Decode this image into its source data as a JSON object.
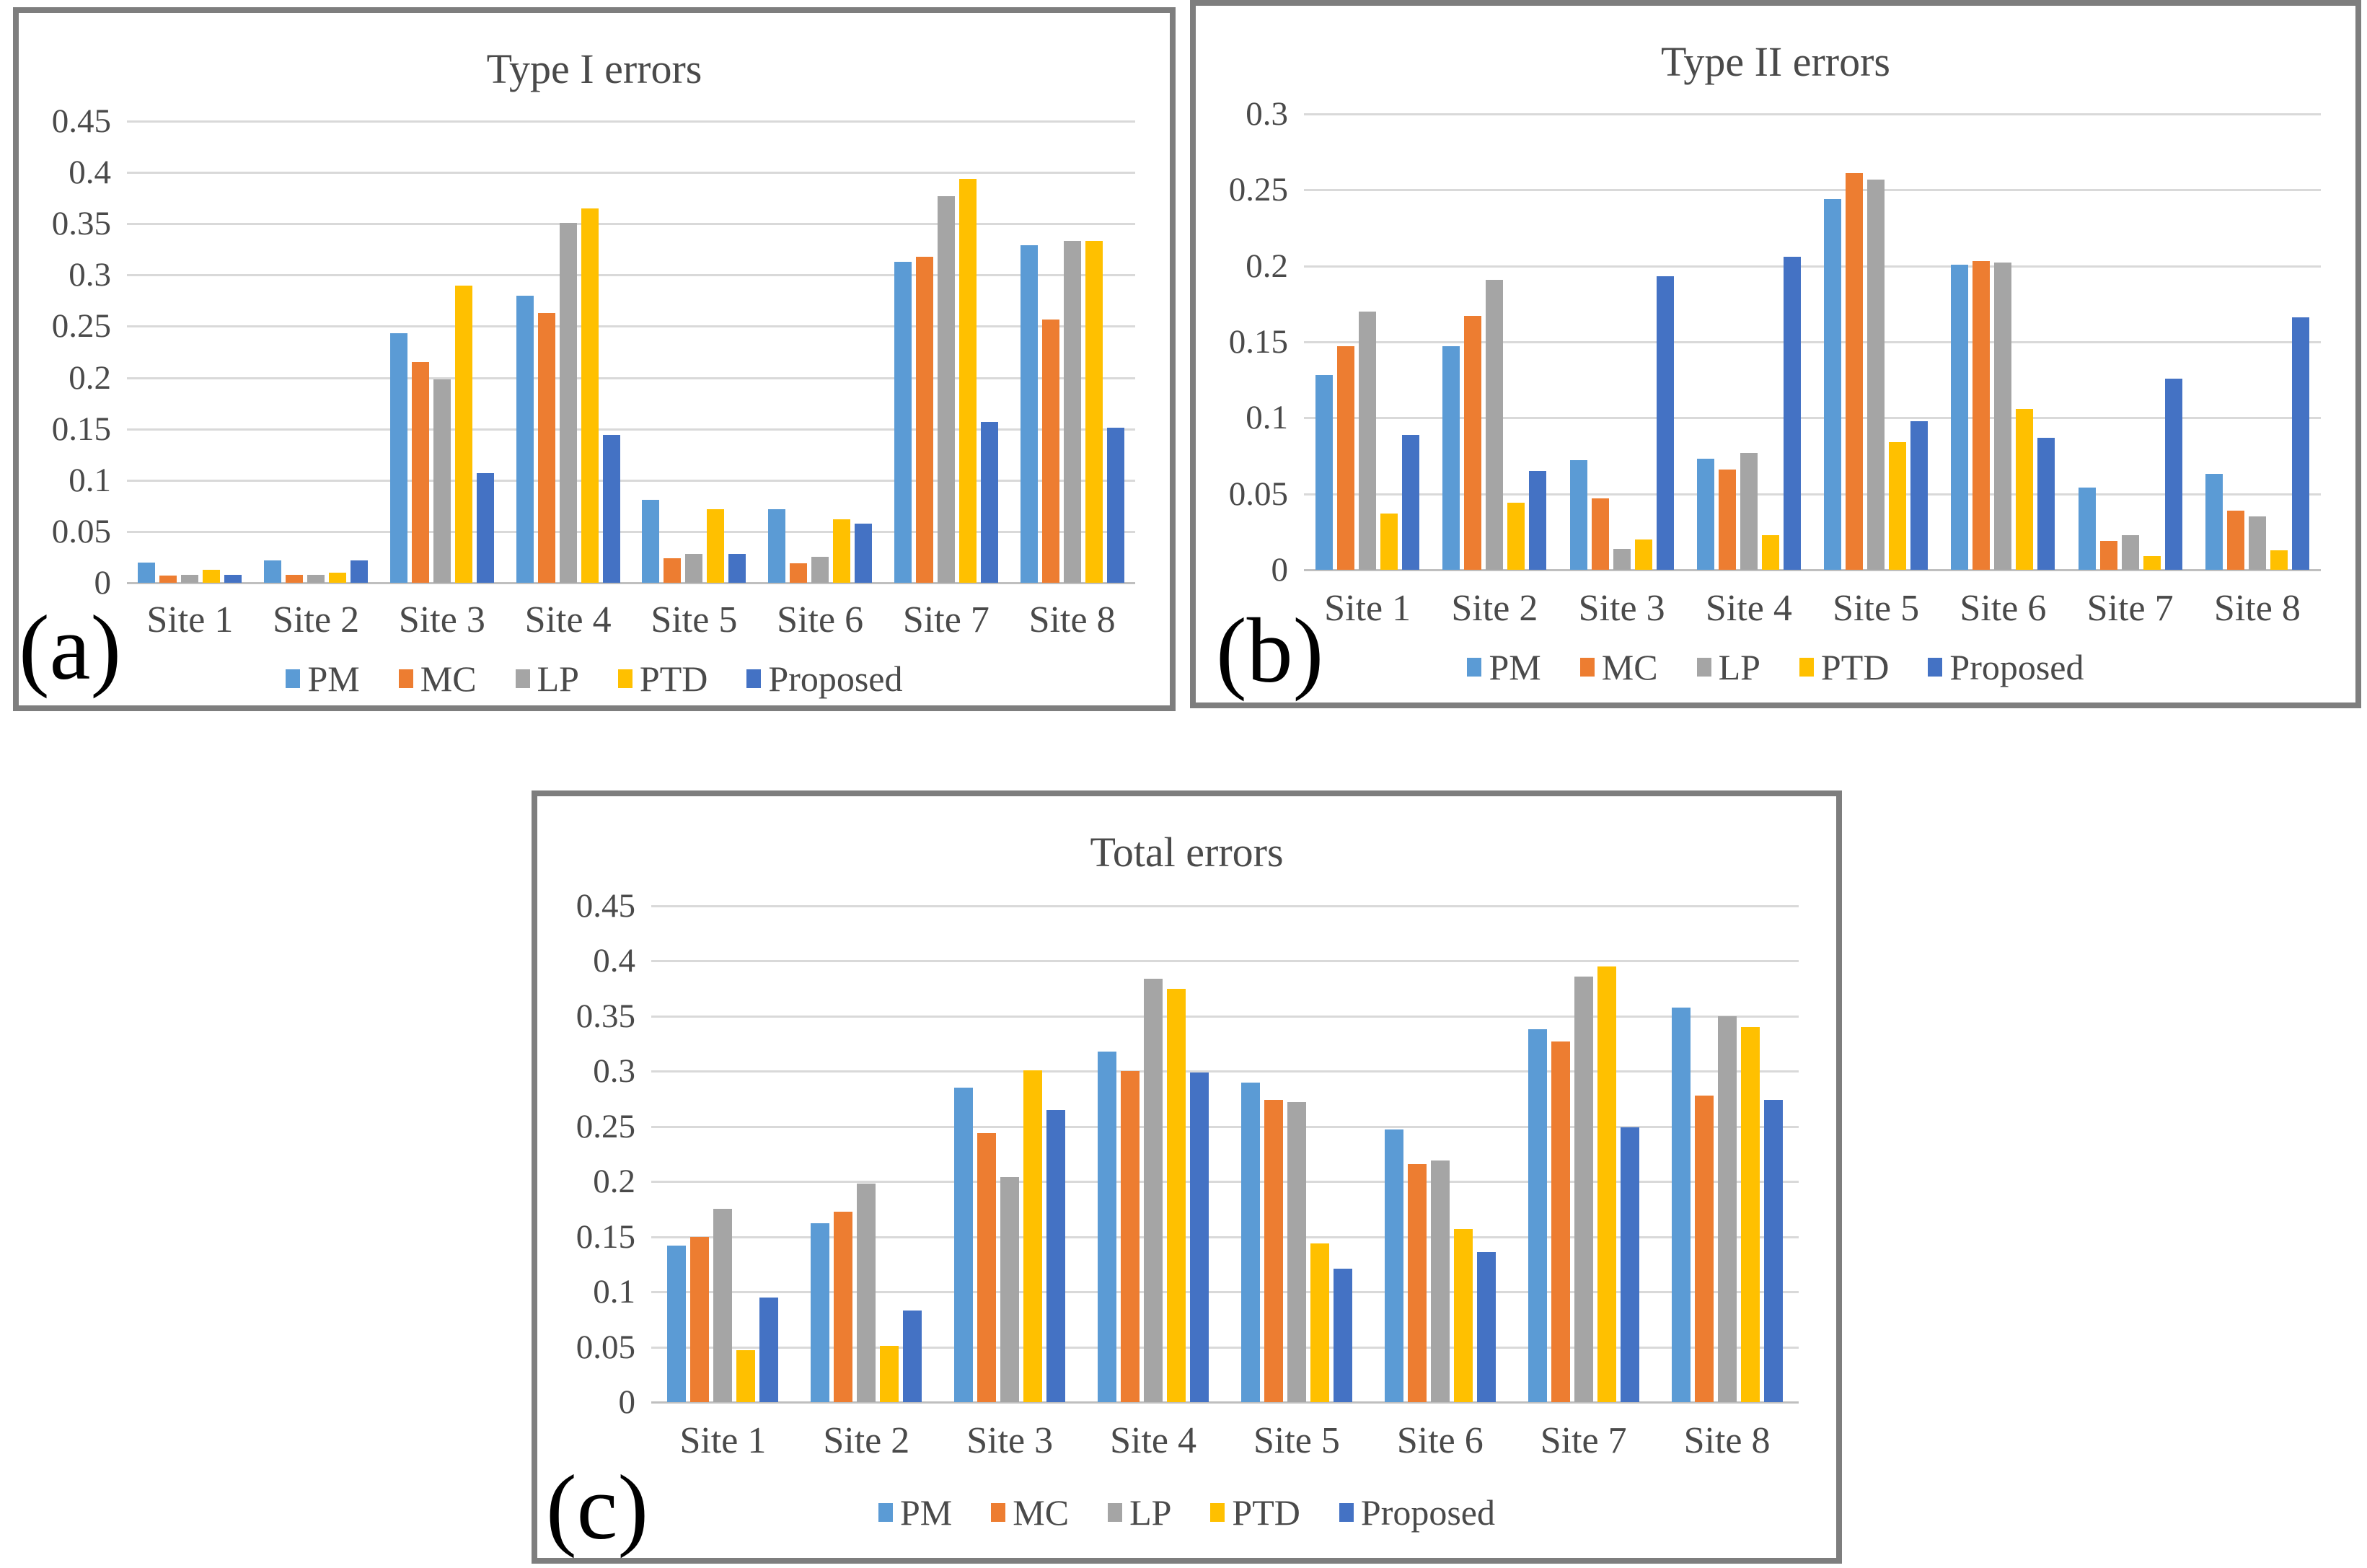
{
  "chart_data": [
    {
      "type": "bar",
      "panel_label": "(a)",
      "title": "Type I errors",
      "categories": [
        "Site 1",
        "Site 2",
        "Site 3",
        "Site 4",
        "Site 5",
        "Site 6",
        "Site 7",
        "Site 8"
      ],
      "series": [
        {
          "name": "PM",
          "color": "#5B9BD5",
          "values": [
            0.02,
            0.022,
            0.243,
            0.28,
            0.081,
            0.072,
            0.313,
            0.329
          ]
        },
        {
          "name": "MC",
          "color": "#ED7D31",
          "values": [
            0.007,
            0.008,
            0.215,
            0.263,
            0.024,
            0.019,
            0.318,
            0.257
          ]
        },
        {
          "name": "LP",
          "color": "#A5A5A5",
          "values": [
            0.008,
            0.008,
            0.198,
            0.351,
            0.028,
            0.025,
            0.377,
            0.333
          ]
        },
        {
          "name": "PTD",
          "color": "#FFC000",
          "values": [
            0.013,
            0.01,
            0.29,
            0.365,
            0.072,
            0.062,
            0.394,
            0.333
          ]
        },
        {
          "name": "Proposed",
          "color": "#4472C4",
          "values": [
            0.008,
            0.022,
            0.107,
            0.144,
            0.028,
            0.058,
            0.157,
            0.151
          ]
        }
      ],
      "ylim": [
        0,
        0.45
      ],
      "yticks": [
        "0",
        "0.05",
        "0.1",
        "0.15",
        "0.2",
        "0.25",
        "0.3",
        "0.35",
        "0.4",
        "0.45"
      ],
      "grid": true,
      "legend_position": "bottom"
    },
    {
      "type": "bar",
      "panel_label": "(b)",
      "title": "Type II errors",
      "categories": [
        "Site 1",
        "Site 2",
        "Site 3",
        "Site 4",
        "Site 5",
        "Site 6",
        "Site 7",
        "Site 8"
      ],
      "series": [
        {
          "name": "PM",
          "color": "#5B9BD5",
          "values": [
            0.128,
            0.147,
            0.072,
            0.073,
            0.244,
            0.201,
            0.054,
            0.063
          ]
        },
        {
          "name": "MC",
          "color": "#ED7D31",
          "values": [
            0.147,
            0.167,
            0.047,
            0.066,
            0.261,
            0.203,
            0.019,
            0.039
          ]
        },
        {
          "name": "LP",
          "color": "#A5A5A5",
          "values": [
            0.17,
            0.191,
            0.014,
            0.077,
            0.257,
            0.202,
            0.023,
            0.035
          ]
        },
        {
          "name": "PTD",
          "color": "#FFC000",
          "values": [
            0.037,
            0.044,
            0.02,
            0.023,
            0.084,
            0.106,
            0.009,
            0.013
          ]
        },
        {
          "name": "Proposed",
          "color": "#4472C4",
          "values": [
            0.089,
            0.065,
            0.193,
            0.206,
            0.098,
            0.087,
            0.126,
            0.166
          ]
        }
      ],
      "ylim": [
        0,
        0.3
      ],
      "yticks": [
        "0",
        "0.05",
        "0.1",
        "0.15",
        "0.2",
        "0.25",
        "0.3"
      ],
      "grid": true,
      "legend_position": "bottom"
    },
    {
      "type": "bar",
      "panel_label": "(c)",
      "title": "Total errors",
      "categories": [
        "Site 1",
        "Site 2",
        "Site 3",
        "Site 4",
        "Site 5",
        "Site 6",
        "Site 7",
        "Site 8"
      ],
      "series": [
        {
          "name": "PM",
          "color": "#5B9BD5",
          "values": [
            0.142,
            0.162,
            0.285,
            0.318,
            0.29,
            0.247,
            0.338,
            0.358
          ]
        },
        {
          "name": "MC",
          "color": "#ED7D31",
          "values": [
            0.15,
            0.173,
            0.244,
            0.3,
            0.274,
            0.216,
            0.327,
            0.278
          ]
        },
        {
          "name": "LP",
          "color": "#A5A5A5",
          "values": [
            0.175,
            0.198,
            0.204,
            0.384,
            0.272,
            0.219,
            0.386,
            0.35
          ]
        },
        {
          "name": "PTD",
          "color": "#FFC000",
          "values": [
            0.047,
            0.051,
            0.301,
            0.375,
            0.144,
            0.157,
            0.395,
            0.34
          ]
        },
        {
          "name": "Proposed",
          "color": "#4472C4",
          "values": [
            0.095,
            0.083,
            0.265,
            0.299,
            0.121,
            0.136,
            0.249,
            0.274
          ]
        }
      ],
      "ylim": [
        0,
        0.45
      ],
      "yticks": [
        "0",
        "0.05",
        "0.1",
        "0.15",
        "0.2",
        "0.25",
        "0.3",
        "0.35",
        "0.4",
        "0.45"
      ],
      "grid": true,
      "legend_position": "bottom"
    }
  ]
}
